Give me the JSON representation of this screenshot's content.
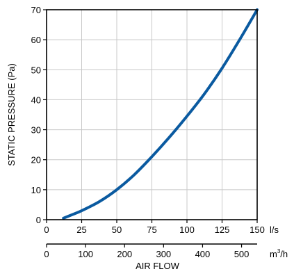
{
  "chart_data": {
    "type": "line",
    "title": "",
    "xlabel": "AIR FLOW",
    "ylabel": "STATIC PRESSURE (Pa)",
    "x_unit": "l/s",
    "x2_unit_base": "m",
    "x2_unit_exp": "3",
    "x2_unit_suffix": "/h",
    "xlim": [
      0,
      150
    ],
    "ylim": [
      0,
      70
    ],
    "x_ticks": [
      0,
      25,
      50,
      75,
      100,
      125,
      150
    ],
    "y_ticks": [
      0,
      10,
      20,
      30,
      40,
      50,
      60,
      70
    ],
    "x2_ticks": [
      0,
      100,
      200,
      300,
      400,
      500
    ],
    "x2_lim": [
      0,
      540
    ],
    "grid": true,
    "line_color": "#0a5aa0",
    "series": [
      {
        "x": [
          12,
          20,
          25,
          37.5,
          50,
          62.5,
          75,
          87.5,
          100,
          112.5,
          125,
          137.5,
          150
        ],
        "y": [
          0.5,
          2.0,
          3.0,
          6.0,
          10.0,
          15.0,
          21.0,
          27.5,
          34.5,
          42.0,
          50.5,
          60.0,
          70.0
        ]
      }
    ]
  }
}
